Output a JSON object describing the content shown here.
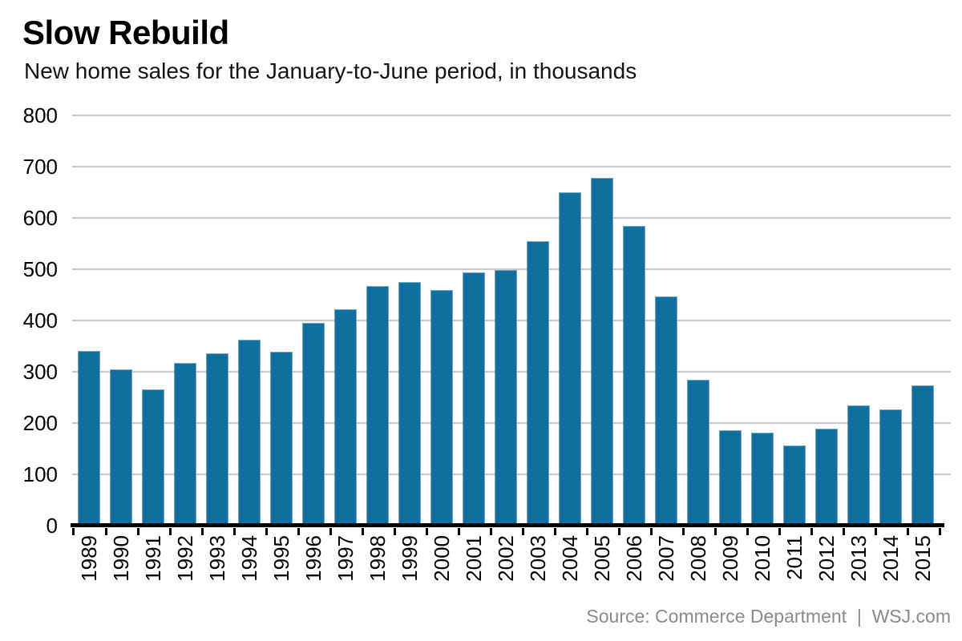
{
  "header": {
    "title": "Slow Rebuild",
    "subtitle": "New home sales for the January-to-June period, in thousands"
  },
  "footer": {
    "source": "Source: Commerce Department  |  WSJ.com"
  },
  "chart_data": {
    "type": "bar",
    "title": "Slow Rebuild",
    "subtitle": "New home sales for the January-to-June period, in thousands",
    "categories": [
      "1989",
      "1990",
      "1991",
      "1992",
      "1993",
      "1994",
      "1995",
      "1996",
      "1997",
      "1998",
      "1999",
      "2000",
      "2001",
      "2002",
      "2003",
      "2004",
      "2005",
      "2006",
      "2007",
      "2008",
      "2009",
      "2010",
      "2011",
      "2012",
      "2013",
      "2014",
      "2015"
    ],
    "values": [
      340,
      305,
      266,
      317,
      336,
      363,
      339,
      396,
      422,
      467,
      475,
      460,
      494,
      498,
      555,
      650,
      678,
      585,
      447,
      284,
      186,
      181,
      156,
      189,
      234,
      226,
      273
    ],
    "xlabel": "",
    "ylabel": "",
    "ylim": [
      0,
      800
    ],
    "yticks": [
      0,
      100,
      200,
      300,
      400,
      500,
      600,
      700,
      800
    ],
    "grid": true,
    "legend": "none",
    "bar_color": "#0f6f9e",
    "bar_border_color": "#6ea7c4",
    "gridline_color": "#c9c9c9",
    "source": "Source: Commerce Department  |  WSJ.com"
  }
}
